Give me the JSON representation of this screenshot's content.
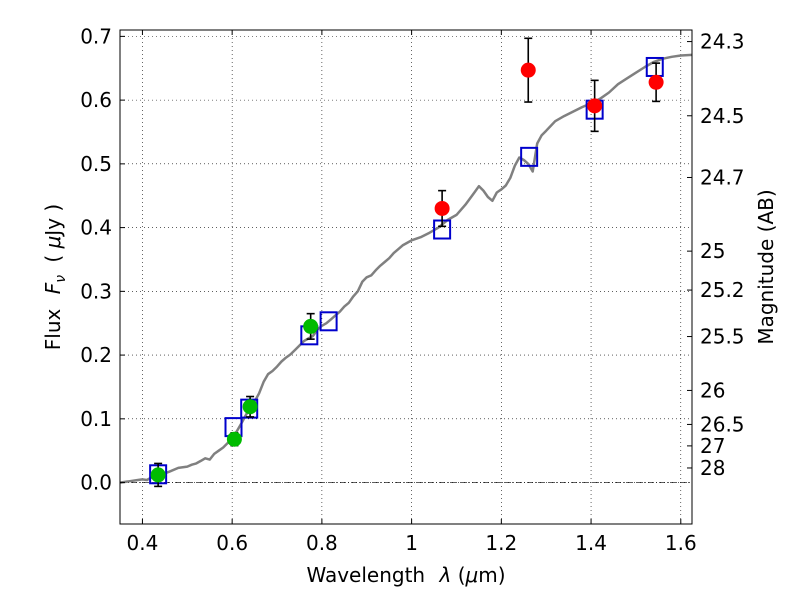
{
  "chart_data": {
    "type": "scatter",
    "xlabel": "Wavelength",
    "xlabel_symbol": "λ",
    "xlabel_unit_open": " (",
    "xlabel_unit_mu": "μ",
    "xlabel_unit_close": "m)",
    "ylabel": "Flux",
    "ylabel_symbol": "F",
    "ylabel_subscript": "ν",
    "ylabel_unit_open": "( ",
    "ylabel_unit_mu": "μ",
    "ylabel_unit_close": "Jy )",
    "y2label": "Magnitude (AB)",
    "xlim": [
      0.35,
      1.625
    ],
    "ylim": [
      -0.065,
      0.71
    ],
    "x_ticks": [
      0.4,
      0.6,
      0.8,
      1.0,
      1.2,
      1.4,
      1.6
    ],
    "x_tick_labels": [
      "0.4",
      "0.6",
      "0.8",
      "1",
      "1.2",
      "1.4",
      "1.6"
    ],
    "y_ticks": [
      0.0,
      0.1,
      0.2,
      0.3,
      0.4,
      0.5,
      0.6,
      0.7
    ],
    "y_tick_labels": [
      "0.0",
      "0.1",
      "0.2",
      "0.3",
      "0.4",
      "0.5",
      "0.6",
      "0.7"
    ],
    "y2_ticks": [
      {
        "mag": 24.3,
        "label": "24.3"
      },
      {
        "mag": 24.5,
        "label": "24.5"
      },
      {
        "mag": 24.7,
        "label": "24.7"
      },
      {
        "mag": 25.0,
        "label": "25"
      },
      {
        "mag": 25.2,
        "label": "25.2"
      },
      {
        "mag": 25.5,
        "label": "25.5"
      },
      {
        "mag": 26.0,
        "label": "26"
      },
      {
        "mag": 26.5,
        "label": "26.5"
      },
      {
        "mag": 27.0,
        "label": "27"
      },
      {
        "mag": 28.0,
        "label": "28"
      }
    ],
    "grid": true,
    "zero_line": true,
    "colors": {
      "model": "#808080",
      "model_photometry": "#0000cc",
      "optical": "#00bb00",
      "nir": "#ff0000",
      "errorbar": "#000000"
    },
    "series": [
      {
        "kind": "line",
        "color": "#808080",
        "points": [
          [
            0.35,
            0.0
          ],
          [
            0.37,
            0.002
          ],
          [
            0.39,
            0.004
          ],
          [
            0.4,
            0.005
          ],
          [
            0.41,
            0.004
          ],
          [
            0.42,
            0.008
          ],
          [
            0.44,
            0.012
          ],
          [
            0.46,
            0.017
          ],
          [
            0.48,
            0.023
          ],
          [
            0.5,
            0.025
          ],
          [
            0.51,
            0.028
          ],
          [
            0.52,
            0.03
          ],
          [
            0.53,
            0.034
          ],
          [
            0.54,
            0.038
          ],
          [
            0.55,
            0.036
          ],
          [
            0.56,
            0.045
          ],
          [
            0.57,
            0.05
          ],
          [
            0.58,
            0.055
          ],
          [
            0.59,
            0.062
          ],
          [
            0.6,
            0.072
          ],
          [
            0.61,
            0.08
          ],
          [
            0.62,
            0.092
          ],
          [
            0.63,
            0.105
          ],
          [
            0.64,
            0.118
          ],
          [
            0.65,
            0.127
          ],
          [
            0.66,
            0.14
          ],
          [
            0.67,
            0.158
          ],
          [
            0.68,
            0.17
          ],
          [
            0.69,
            0.175
          ],
          [
            0.7,
            0.182
          ],
          [
            0.71,
            0.19
          ],
          [
            0.72,
            0.196
          ],
          [
            0.73,
            0.201
          ],
          [
            0.74,
            0.208
          ],
          [
            0.75,
            0.215
          ],
          [
            0.76,
            0.222
          ],
          [
            0.77,
            0.226
          ],
          [
            0.78,
            0.23
          ],
          [
            0.79,
            0.24
          ],
          [
            0.8,
            0.246
          ],
          [
            0.81,
            0.25
          ],
          [
            0.82,
            0.256
          ],
          [
            0.83,
            0.262
          ],
          [
            0.84,
            0.268
          ],
          [
            0.85,
            0.276
          ],
          [
            0.86,
            0.282
          ],
          [
            0.87,
            0.292
          ],
          [
            0.88,
            0.3
          ],
          [
            0.89,
            0.315
          ],
          [
            0.9,
            0.322
          ],
          [
            0.91,
            0.325
          ],
          [
            0.92,
            0.333
          ],
          [
            0.93,
            0.34
          ],
          [
            0.94,
            0.346
          ],
          [
            0.95,
            0.352
          ],
          [
            0.96,
            0.36
          ],
          [
            0.97,
            0.366
          ],
          [
            0.98,
            0.372
          ],
          [
            0.99,
            0.376
          ],
          [
            1.0,
            0.38
          ],
          [
            1.02,
            0.385
          ],
          [
            1.04,
            0.392
          ],
          [
            1.06,
            0.4
          ],
          [
            1.08,
            0.412
          ],
          [
            1.1,
            0.42
          ],
          [
            1.12,
            0.436
          ],
          [
            1.14,
            0.455
          ],
          [
            1.15,
            0.465
          ],
          [
            1.16,
            0.458
          ],
          [
            1.17,
            0.448
          ],
          [
            1.18,
            0.442
          ],
          [
            1.19,
            0.455
          ],
          [
            1.2,
            0.46
          ],
          [
            1.21,
            0.466
          ],
          [
            1.22,
            0.478
          ],
          [
            1.23,
            0.497
          ],
          [
            1.24,
            0.51
          ],
          [
            1.25,
            0.506
          ],
          [
            1.26,
            0.5
          ],
          [
            1.27,
            0.488
          ],
          [
            1.28,
            0.532
          ],
          [
            1.29,
            0.545
          ],
          [
            1.3,
            0.552
          ],
          [
            1.32,
            0.567
          ],
          [
            1.34,
            0.575
          ],
          [
            1.36,
            0.582
          ],
          [
            1.38,
            0.589
          ],
          [
            1.4,
            0.595
          ],
          [
            1.42,
            0.602
          ],
          [
            1.44,
            0.612
          ],
          [
            1.46,
            0.625
          ],
          [
            1.48,
            0.634
          ],
          [
            1.5,
            0.643
          ],
          [
            1.52,
            0.652
          ],
          [
            1.54,
            0.66
          ],
          [
            1.56,
            0.665
          ],
          [
            1.58,
            0.668
          ],
          [
            1.6,
            0.67
          ],
          [
            1.625,
            0.671
          ]
        ]
      },
      {
        "kind": "square",
        "color": "#0000cc",
        "points": [
          [
            0.435,
            0.013
          ],
          [
            0.603,
            0.087
          ],
          [
            0.638,
            0.116
          ],
          [
            0.772,
            0.231
          ],
          [
            0.815,
            0.253
          ],
          [
            1.068,
            0.397
          ],
          [
            1.262,
            0.511
          ],
          [
            1.408,
            0.585
          ],
          [
            1.542,
            0.652
          ]
        ]
      },
      {
        "kind": "circle",
        "color": "#00bb00",
        "points": [
          {
            "x": 0.435,
            "y": 0.012,
            "yerr": 0.018
          },
          {
            "x": 0.605,
            "y": 0.068,
            "yerr": 0.01
          },
          {
            "x": 0.64,
            "y": 0.119,
            "yerr": 0.016
          },
          {
            "x": 0.775,
            "y": 0.245,
            "yerr": 0.02
          }
        ]
      },
      {
        "kind": "circle",
        "color": "#ff0000",
        "points": [
          {
            "x": 1.068,
            "y": 0.43,
            "yerr": 0.028
          },
          {
            "x": 1.26,
            "y": 0.647,
            "yerr": 0.05
          },
          {
            "x": 1.408,
            "y": 0.591,
            "yerr": 0.04
          },
          {
            "x": 1.545,
            "y": 0.628,
            "yerr": 0.03
          }
        ]
      }
    ]
  }
}
